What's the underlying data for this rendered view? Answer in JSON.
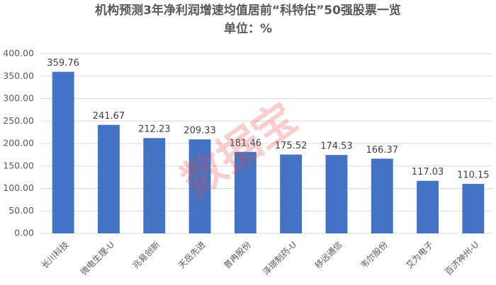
{
  "chart_data": {
    "type": "bar",
    "title": "机构预测3年净利润增速均值居前“科特估”50强股票一览",
    "subtitle": "单位：%",
    "watermark": "数据宝",
    "categories": [
      "长川科技",
      "微电生理-U",
      "兆易创新",
      "天岳先进",
      "普冉股份",
      "泽璟制药-U",
      "移远通信",
      "韦尔股份",
      "艾为电子",
      "百济神州-U"
    ],
    "values": [
      359.76,
      241.67,
      212.23,
      209.33,
      181.46,
      175.52,
      174.53,
      166.37,
      117.03,
      110.15
    ],
    "color": "#4472c4",
    "ylim": [
      0,
      400
    ],
    "yticks": [
      {
        "value": 0,
        "label": "0.00"
      },
      {
        "value": 50,
        "label": "50.00"
      },
      {
        "value": 100,
        "label": "100.00"
      },
      {
        "value": 150,
        "label": "150.00"
      },
      {
        "value": 200,
        "label": "200.00"
      },
      {
        "value": 250,
        "label": "250.00"
      },
      {
        "value": 300,
        "label": "300.00"
      },
      {
        "value": 350,
        "label": "350.00"
      },
      {
        "value": 400,
        "label": "400.00"
      }
    ],
    "grid": true
  }
}
